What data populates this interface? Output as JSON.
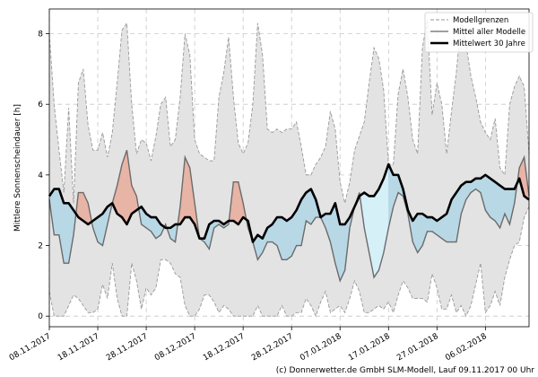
{
  "chart_data": {
    "type": "line",
    "title": "",
    "ylabel": "Mittlere Sonnenscheindauer [h]",
    "xlabel": "",
    "ylim": [
      -0.3,
      8.7
    ],
    "yticks": [
      0,
      2,
      4,
      6,
      8
    ],
    "x_start_day": 0,
    "x_end_day": 99,
    "xticks": [
      {
        "day": 0,
        "label": "08.11.2017"
      },
      {
        "day": 10,
        "label": "18.11.2017"
      },
      {
        "day": 20,
        "label": "28.11.2017"
      },
      {
        "day": 30,
        "label": "08.12.2017"
      },
      {
        "day": 40,
        "label": "18.12.2017"
      },
      {
        "day": 50,
        "label": "28.12.2017"
      },
      {
        "day": 60,
        "label": "07.01.2018"
      },
      {
        "day": 70,
        "label": "17.01.2018"
      },
      {
        "day": 80,
        "label": "27.01.2018"
      },
      {
        "day": 90,
        "label": "06.02.2018"
      }
    ],
    "legend": {
      "position": "top-right",
      "entries": [
        {
          "label": "Modellgrenzen",
          "style": "dashed",
          "color": "#999999"
        },
        {
          "label": "Mittel aller Modelle",
          "style": "solid",
          "color": "#666666"
        },
        {
          "label": "Mittelwert 30 Jahre",
          "style": "solid-thick",
          "color": "#000000"
        }
      ]
    },
    "colors": {
      "band_fill": "#e3e3e3",
      "band_edge": "#999999",
      "model_mean": "#6b6b6b",
      "climatology": "#000000",
      "above_fill": "#e8b4a6",
      "below_fill": "#b8d8e6",
      "below_fill_light": "#d6f0f8",
      "grid": "#c8c8c8"
    },
    "series": [
      {
        "name": "Modellgrenzen (oben)",
        "values": [
          8.0,
          6.0,
          4.7,
          3.5,
          5.9,
          3.2,
          6.6,
          7.0,
          5.4,
          4.7,
          4.7,
          5.2,
          4.5,
          5.2,
          6.6,
          8.1,
          8.3,
          6.0,
          4.6,
          5.0,
          4.9,
          4.4,
          5.1,
          6.0,
          6.2,
          4.8,
          5.0,
          6.2,
          8.0,
          7.4,
          5.0,
          4.6,
          4.5,
          4.4,
          4.4,
          6.2,
          6.9,
          7.9,
          6.2,
          4.9,
          4.6,
          4.9,
          6.0,
          8.3,
          7.4,
          5.3,
          5.2,
          5.3,
          5.2,
          5.3,
          5.3,
          5.5,
          4.8,
          4.0,
          4.0,
          4.3,
          4.5,
          4.8,
          5.8,
          5.3,
          3.8,
          3.2,
          3.8,
          4.7,
          5.1,
          5.5,
          6.6,
          7.6,
          7.3,
          6.4,
          4.3,
          4.3,
          6.3,
          7.0,
          6.2,
          5.0,
          4.6,
          7.6,
          8.4,
          5.7,
          6.6,
          6.0,
          4.6,
          5.8,
          6.9,
          8.4,
          7.7,
          6.8,
          6.2,
          5.5,
          5.2,
          5.0,
          5.6,
          4.2,
          4.0,
          6.0,
          6.5,
          6.8,
          6.5,
          4.6
        ]
      },
      {
        "name": "Modellgrenzen (unten)",
        "values": [
          0.7,
          0.0,
          0.0,
          0.0,
          0.3,
          0.6,
          0.5,
          0.3,
          0.1,
          0.1,
          0.2,
          0.9,
          0.5,
          1.5,
          0.5,
          0.0,
          0.0,
          1.5,
          1.0,
          0.2,
          0.8,
          0.6,
          0.8,
          1.6,
          1.6,
          1.5,
          1.2,
          1.1,
          0.3,
          0.0,
          0.0,
          0.2,
          0.6,
          0.6,
          0.4,
          0.1,
          0.3,
          0.2,
          0.0,
          0.0,
          0.0,
          0.0,
          0.0,
          0.3,
          0.0,
          0.0,
          0.0,
          0.0,
          0.3,
          0.0,
          0.0,
          0.1,
          0.1,
          0.5,
          0.3,
          0.0,
          0.4,
          0.7,
          0.1,
          0.2,
          0.3,
          0.1,
          0.5,
          1.0,
          0.7,
          0.1,
          0.1,
          0.2,
          0.3,
          0.2,
          0.4,
          0.1,
          0.6,
          1.0,
          0.8,
          0.5,
          0.5,
          0.5,
          0.4,
          1.2,
          0.8,
          0.2,
          0.2,
          0.6,
          0.1,
          0.3,
          0.0,
          0.3,
          0.9,
          1.5,
          0.1,
          0.3,
          0.7,
          0.3,
          1.1,
          1.6,
          2.0,
          2.1,
          2.8,
          3.1
        ]
      },
      {
        "name": "Mittel aller Modelle",
        "values": [
          3.3,
          2.3,
          2.3,
          1.5,
          1.5,
          2.3,
          3.5,
          3.5,
          3.2,
          2.5,
          2.1,
          2.0,
          2.6,
          3.2,
          3.7,
          4.3,
          4.7,
          3.7,
          3.4,
          2.6,
          2.5,
          2.4,
          2.2,
          2.3,
          2.6,
          2.2,
          2.1,
          3.1,
          4.5,
          4.2,
          3.2,
          2.2,
          2.1,
          1.9,
          2.5,
          2.6,
          2.5,
          2.6,
          3.8,
          3.8,
          3.2,
          2.5,
          2.1,
          1.6,
          1.8,
          2.1,
          2.1,
          2.0,
          1.6,
          1.6,
          1.7,
          2.0,
          2.0,
          2.7,
          2.6,
          2.8,
          2.8,
          2.5,
          2.1,
          1.5,
          1.0,
          1.3,
          2.5,
          3.1,
          3.5,
          2.5,
          1.8,
          1.1,
          1.3,
          1.8,
          2.5,
          3.1,
          3.5,
          3.4,
          2.9,
          2.1,
          1.8,
          2.0,
          2.4,
          2.4,
          2.3,
          2.2,
          2.1,
          2.1,
          2.1,
          2.9,
          3.3,
          3.5,
          3.6,
          3.5,
          3.0,
          2.8,
          2.7,
          2.5,
          2.9,
          2.6,
          3.2,
          4.2,
          4.5,
          3.4
        ]
      },
      {
        "name": "Mittelwert 30 Jahre",
        "values": [
          3.4,
          3.6,
          3.6,
          3.2,
          3.2,
          3.0,
          2.8,
          2.7,
          2.6,
          2.7,
          2.8,
          2.9,
          3.1,
          3.2,
          2.9,
          2.8,
          2.6,
          2.9,
          3.0,
          3.1,
          2.9,
          2.8,
          2.8,
          2.6,
          2.5,
          2.5,
          2.6,
          2.6,
          2.8,
          2.8,
          2.6,
          2.2,
          2.2,
          2.6,
          2.7,
          2.7,
          2.6,
          2.7,
          2.7,
          2.6,
          2.8,
          2.7,
          2.1,
          2.3,
          2.2,
          2.5,
          2.6,
          2.8,
          2.8,
          2.7,
          2.8,
          3.0,
          3.3,
          3.5,
          3.6,
          3.3,
          2.8,
          2.9,
          2.9,
          3.2,
          2.6,
          2.6,
          2.8,
          3.1,
          3.4,
          3.5,
          3.4,
          3.4,
          3.6,
          3.9,
          4.3,
          4.0,
          4.0,
          3.6,
          3.0,
          2.7,
          2.9,
          2.9,
          2.8,
          2.8,
          2.7,
          2.8,
          2.9,
          3.3,
          3.5,
          3.7,
          3.8,
          3.8,
          3.9,
          3.9,
          4.0,
          3.9,
          3.8,
          3.7,
          3.6,
          3.6,
          3.6,
          3.9,
          3.4,
          3.3
        ]
      }
    ]
  },
  "footer": "(c) Donnerwetter.de GmbH SLM-Modell, Lauf 09.11.2017 00 Uhr"
}
